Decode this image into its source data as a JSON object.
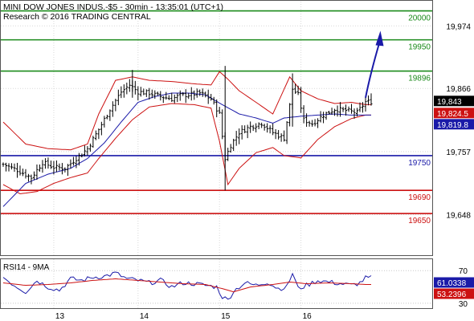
{
  "header": {
    "instrument_line": "MINI DOW JONES INDUS.-$5 - 30min - 13:35:01 (UTC+1)",
    "research_line": "Research © 2016 TRADING CENTRAL"
  },
  "chart_data": [
    {
      "type": "line",
      "name": "price-panel",
      "x_tick_labels": [
        "13",
        "14",
        "15",
        "16"
      ],
      "x_tick_bars": [
        18,
        48,
        77,
        106
      ],
      "bar_count": 132,
      "y_tick_labels": [
        "19,974",
        "19,866",
        "19,757",
        "19,648"
      ],
      "y_tick_values": [
        19974,
        19866,
        19757,
        19648
      ],
      "ylim": [
        19578,
        20016
      ],
      "levels": [
        {
          "label": "20000",
          "value": 20000,
          "color": "#1a8a1a"
        },
        {
          "label": "19950",
          "value": 19950,
          "color": "#1a8a1a"
        },
        {
          "label": "19896",
          "value": 19896,
          "color": "#1a8a1a"
        },
        {
          "label": "19750",
          "value": 19750,
          "color": "#1a1aa8"
        },
        {
          "label": "19690",
          "value": 19690,
          "color": "#cc1111"
        },
        {
          "label": "19650",
          "value": 19650,
          "color": "#cc1111"
        }
      ],
      "price_tags": [
        {
          "label": "19,843",
          "value": 19843,
          "bg": "#000000",
          "fg": "#ffffff"
        },
        {
          "label": "19,824.5",
          "value": 19824.5,
          "bg": "#cc1111",
          "fg": "#ffffff"
        },
        {
          "label": "19,819.8",
          "value": 19819.8,
          "bg": "#1a1aa8",
          "fg": "#ffffff"
        }
      ],
      "colors": {
        "price": "#000000",
        "bollinger": "#cc1111",
        "moving_average": "#1a1aa8",
        "arrow": "#1a1aa8"
      },
      "arrow": {
        "from_bar": 129,
        "from_value": 19850,
        "to_bar": 134,
        "to_value": 19960
      },
      "price_close_anchors": [
        [
          0,
          19735
        ],
        [
          5,
          19725
        ],
        [
          10,
          19712
        ],
        [
          14,
          19738
        ],
        [
          18,
          19730
        ],
        [
          22,
          19728
        ],
        [
          26,
          19745
        ],
        [
          30,
          19762
        ],
        [
          34,
          19795
        ],
        [
          38,
          19830
        ],
        [
          42,
          19860
        ],
        [
          45,
          19872
        ],
        [
          48,
          19860
        ],
        [
          52,
          19858
        ],
        [
          56,
          19852
        ],
        [
          60,
          19848
        ],
        [
          63,
          19854
        ],
        [
          66,
          19855
        ],
        [
          70,
          19858
        ],
        [
          74,
          19848
        ],
        [
          77,
          19822
        ],
        [
          79,
          19745
        ],
        [
          81,
          19768
        ],
        [
          84,
          19790
        ],
        [
          88,
          19800
        ],
        [
          92,
          19806
        ],
        [
          96,
          19790
        ],
        [
          100,
          19780
        ],
        [
          103,
          19865
        ],
        [
          105,
          19855
        ],
        [
          107,
          19812
        ],
        [
          110,
          19805
        ],
        [
          114,
          19820
        ],
        [
          118,
          19830
        ],
        [
          122,
          19828
        ],
        [
          126,
          19824
        ],
        [
          129,
          19843
        ]
      ],
      "bb_upper_anchors": [
        [
          0,
          19808
        ],
        [
          8,
          19770
        ],
        [
          16,
          19762
        ],
        [
          24,
          19760
        ],
        [
          30,
          19770
        ],
        [
          34,
          19822
        ],
        [
          40,
          19880
        ],
        [
          46,
          19886
        ],
        [
          52,
          19880
        ],
        [
          60,
          19878
        ],
        [
          68,
          19874
        ],
        [
          74,
          19872
        ],
        [
          77,
          19895
        ],
        [
          80,
          19882
        ],
        [
          84,
          19862
        ],
        [
          90,
          19842
        ],
        [
          96,
          19822
        ],
        [
          102,
          19886
        ],
        [
          106,
          19862
        ],
        [
          112,
          19848
        ],
        [
          118,
          19840
        ],
        [
          124,
          19842
        ],
        [
          129,
          19838
        ]
      ],
      "bb_lower_anchors": [
        [
          0,
          19700
        ],
        [
          6,
          19684
        ],
        [
          12,
          19688
        ],
        [
          18,
          19702
        ],
        [
          24,
          19712
        ],
        [
          30,
          19720
        ],
        [
          34,
          19745
        ],
        [
          40,
          19780
        ],
        [
          46,
          19812
        ],
        [
          52,
          19834
        ],
        [
          60,
          19840
        ],
        [
          68,
          19838
        ],
        [
          74,
          19832
        ],
        [
          77,
          19775
        ],
        [
          80,
          19700
        ],
        [
          84,
          19728
        ],
        [
          90,
          19755
        ],
        [
          96,
          19764
        ],
        [
          100,
          19750
        ],
        [
          106,
          19746
        ],
        [
          112,
          19778
        ],
        [
          118,
          19800
        ],
        [
          124,
          19814
        ],
        [
          129,
          19820
        ]
      ],
      "ma_anchors": [
        [
          0,
          19662
        ],
        [
          8,
          19702
        ],
        [
          16,
          19718
        ],
        [
          24,
          19728
        ],
        [
          30,
          19745
        ],
        [
          36,
          19772
        ],
        [
          42,
          19808
        ],
        [
          48,
          19842
        ],
        [
          54,
          19852
        ],
        [
          60,
          19858
        ],
        [
          66,
          19858
        ],
        [
          72,
          19855
        ],
        [
          78,
          19838
        ],
        [
          84,
          19822
        ],
        [
          90,
          19815
        ],
        [
          96,
          19806
        ],
        [
          100,
          19815
        ],
        [
          106,
          19818
        ],
        [
          112,
          19820
        ],
        [
          118,
          19822
        ],
        [
          124,
          19820
        ],
        [
          129,
          19820
        ]
      ]
    },
    {
      "type": "line",
      "name": "rsi-panel",
      "title": "RSI14 - 9MA",
      "y_tick_labels": [
        "70",
        "30"
      ],
      "y_tick_values": [
        70,
        30
      ],
      "ylim": [
        24,
        84
      ],
      "price_tags": [
        {
          "label": "61.0338",
          "value": 61.0338,
          "bg": "#1a1aa8",
          "fg": "#ffffff"
        },
        {
          "label": "53.2396",
          "value": 53.2396,
          "bg": "#cc1111",
          "fg": "#ffffff"
        }
      ],
      "rsi_anchors": [
        [
          0,
          62
        ],
        [
          4,
          52
        ],
        [
          8,
          44
        ],
        [
          12,
          58
        ],
        [
          16,
          50
        ],
        [
          20,
          46
        ],
        [
          24,
          60
        ],
        [
          28,
          58
        ],
        [
          32,
          62
        ],
        [
          36,
          63
        ],
        [
          40,
          67
        ],
        [
          44,
          60
        ],
        [
          48,
          58
        ],
        [
          52,
          55
        ],
        [
          56,
          58
        ],
        [
          60,
          50
        ],
        [
          64,
          55
        ],
        [
          68,
          54
        ],
        [
          72,
          52
        ],
        [
          76,
          50
        ],
        [
          78,
          38
        ],
        [
          80,
          34
        ],
        [
          82,
          45
        ],
        [
          86,
          55
        ],
        [
          90,
          52
        ],
        [
          94,
          56
        ],
        [
          98,
          48
        ],
        [
          101,
          50
        ],
        [
          103,
          67
        ],
        [
          105,
          48
        ],
        [
          108,
          52
        ],
        [
          112,
          58
        ],
        [
          116,
          56
        ],
        [
          120,
          54
        ],
        [
          124,
          52
        ],
        [
          127,
          55
        ],
        [
          129,
          61
        ]
      ],
      "rsi_ma_anchors": [
        [
          0,
          55
        ],
        [
          8,
          52
        ],
        [
          16,
          53
        ],
        [
          24,
          55
        ],
        [
          32,
          58
        ],
        [
          40,
          60
        ],
        [
          48,
          58
        ],
        [
          56,
          56
        ],
        [
          64,
          54
        ],
        [
          72,
          53
        ],
        [
          78,
          48
        ],
        [
          82,
          44
        ],
        [
          88,
          50
        ],
        [
          96,
          53
        ],
        [
          102,
          56
        ],
        [
          108,
          54
        ],
        [
          116,
          55
        ],
        [
          124,
          54
        ],
        [
          129,
          53
        ]
      ]
    }
  ]
}
